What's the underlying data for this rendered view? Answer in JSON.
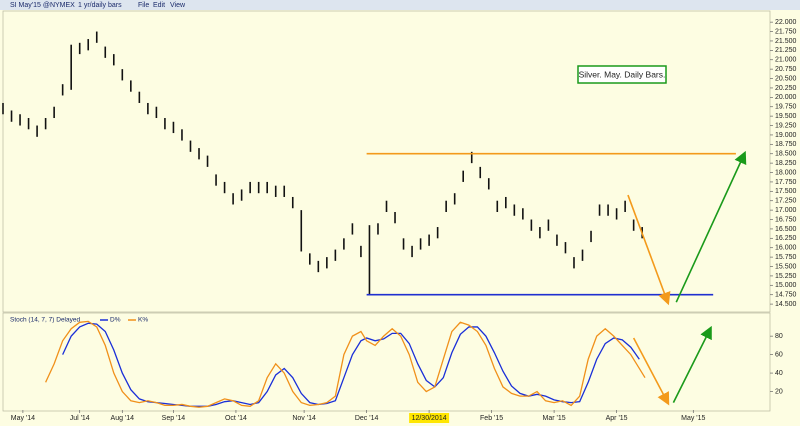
{
  "menu": [
    "File",
    "Edit",
    "View"
  ],
  "chart_data": [
    {
      "type": "pricebars",
      "title": "SI May'15 @NYMEX",
      "subtitle": "1 yr/daily bars",
      "annotation": "Silver. May. Daily Bars.",
      "color": "#111111",
      "xlim": [
        0,
        270
      ],
      "ylim": [
        14.29,
        22.27
      ],
      "x": [
        0,
        3,
        6,
        9,
        12,
        15,
        18,
        21,
        24,
        27,
        30,
        33,
        36,
        39,
        42,
        45,
        48,
        51,
        54,
        57,
        60,
        63,
        66,
        69,
        72,
        75,
        78,
        81,
        84,
        87,
        90,
        93,
        96,
        99,
        102,
        105,
        108,
        111,
        114,
        117,
        120,
        123,
        126,
        129,
        132,
        135,
        138,
        141,
        144,
        147,
        150,
        153,
        156,
        159,
        162,
        165,
        168,
        171,
        174,
        177,
        180,
        183,
        186,
        189,
        192,
        195,
        198,
        201,
        204,
        207,
        210,
        213,
        216,
        219,
        222,
        225
      ],
      "high": [
        19.85,
        19.65,
        19.55,
        19.45,
        19.25,
        19.45,
        19.75,
        20.35,
        21.4,
        21.45,
        21.55,
        21.75,
        21.35,
        21.15,
        20.75,
        20.45,
        20.15,
        19.85,
        19.75,
        19.45,
        19.35,
        19.15,
        18.85,
        18.65,
        18.45,
        17.95,
        17.75,
        17.45,
        17.55,
        17.75,
        17.75,
        17.75,
        17.65,
        17.65,
        17.35,
        17.0,
        15.85,
        15.65,
        15.75,
        15.95,
        16.25,
        16.65,
        16.05,
        16.6,
        16.65,
        17.25,
        16.95,
        16.25,
        16.05,
        16.25,
        16.35,
        16.55,
        17.25,
        17.45,
        18.05,
        18.55,
        18.15,
        17.85,
        17.25,
        17.35,
        17.15,
        17.05,
        16.75,
        16.55,
        16.75,
        16.35,
        16.15,
        15.75,
        15.95,
        16.45,
        17.15,
        17.15,
        17.05,
        17.25,
        16.75,
        16.55
      ],
      "low": [
        19.55,
        19.35,
        19.25,
        19.15,
        18.95,
        19.15,
        19.45,
        20.05,
        20.2,
        21.15,
        21.25,
        21.45,
        21.05,
        20.85,
        20.45,
        20.15,
        19.85,
        19.55,
        19.45,
        19.15,
        19.05,
        18.85,
        18.55,
        18.35,
        18.15,
        17.65,
        17.45,
        17.15,
        17.25,
        17.45,
        17.45,
        17.45,
        17.35,
        17.35,
        17.05,
        15.9,
        15.55,
        15.35,
        15.45,
        15.65,
        15.95,
        16.35,
        15.75,
        14.75,
        16.35,
        16.95,
        16.65,
        15.95,
        15.75,
        15.95,
        16.05,
        16.25,
        16.95,
        17.15,
        17.75,
        18.25,
        17.85,
        17.55,
        16.95,
        17.05,
        16.85,
        16.75,
        16.45,
        16.25,
        16.45,
        16.05,
        15.85,
        15.45,
        15.65,
        16.15,
        16.85,
        16.85,
        16.75,
        16.95,
        16.45,
        16.25
      ],
      "yticks": [
        {
          "value": 14.5,
          "label": "14.500"
        },
        {
          "value": 14.75,
          "label": "14.750"
        },
        {
          "value": 15,
          "label": "15.000"
        },
        {
          "value": 15.25,
          "label": "15.250"
        },
        {
          "value": 15.5,
          "label": "15.500"
        },
        {
          "value": 15.75,
          "label": "15.750"
        },
        {
          "value": 16,
          "label": "16.000"
        },
        {
          "value": 16.25,
          "label": "16.250"
        },
        {
          "value": 16.5,
          "label": "16.500"
        },
        {
          "value": 16.75,
          "label": "16.750"
        },
        {
          "value": 17,
          "label": "17.000"
        },
        {
          "value": 17.25,
          "label": "17.250"
        },
        {
          "value": 17.5,
          "label": "17.500"
        },
        {
          "value": 17.75,
          "label": "17.750"
        },
        {
          "value": 18,
          "label": "18.000"
        },
        {
          "value": 18.25,
          "label": "18.250"
        },
        {
          "value": 18.5,
          "label": "18.500"
        },
        {
          "value": 18.75,
          "label": "18.750"
        },
        {
          "value": 19,
          "label": "19.000"
        },
        {
          "value": 19.25,
          "label": "19.250"
        },
        {
          "value": 19.5,
          "label": "19.500"
        },
        {
          "value": 19.75,
          "label": "19.750"
        },
        {
          "value": 20,
          "label": "20.000"
        },
        {
          "value": 20.25,
          "label": "20.250"
        },
        {
          "value": 20.5,
          "label": "20.500"
        },
        {
          "value": 20.75,
          "label": "20.750"
        },
        {
          "value": 21,
          "label": "21.000"
        },
        {
          "value": 21.25,
          "label": "21.250"
        },
        {
          "value": 21.5,
          "label": "21.500"
        },
        {
          "value": 21.75,
          "label": "21.750"
        },
        {
          "value": 22,
          "label": "22.000"
        }
      ],
      "trendlines": [
        {
          "x": [
            128,
            258
          ],
          "y": [
            18.5,
            18.5
          ],
          "color": "#f39a1b"
        },
        {
          "x": [
            128,
            250
          ],
          "y": [
            14.75,
            14.75
          ],
          "color": "#1f2fd0"
        },
        {
          "x": [
            220,
            234
          ],
          "y": [
            17.4,
            14.55
          ],
          "color": "#f39a1b"
        },
        {
          "x": [
            237,
            261
          ],
          "y": [
            14.55,
            18.5
          ],
          "color": "#1a9a1a"
        }
      ]
    },
    {
      "type": "line",
      "title": "Stoch (14, 7, 7) Delayed",
      "xlim": [
        0,
        270
      ],
      "ylim": [
        0,
        104
      ],
      "yticks": [
        20,
        40,
        60,
        80
      ],
      "xticks": [
        {
          "value": 7,
          "label": "May '14"
        },
        {
          "value": 27,
          "label": "Jul '14"
        },
        {
          "value": 42,
          "label": "Aug '14"
        },
        {
          "value": 60,
          "label": "Sep '14"
        },
        {
          "value": 82,
          "label": "Oct '14"
        },
        {
          "value": 106,
          "label": "Nov '14"
        },
        {
          "value": 128,
          "label": "Dec '14"
        },
        {
          "value": 150,
          "label": "12/30/2014"
        },
        {
          "value": 172,
          "label": "Feb '15"
        },
        {
          "value": 194,
          "label": "Mar '15"
        },
        {
          "value": 216,
          "label": "Apr '15"
        },
        {
          "value": 243,
          "label": "May '15"
        }
      ],
      "highlight_xtick": 7,
      "series": [
        {
          "name": "D%",
          "color": "#1a2fd8",
          "x": [
            21,
            24,
            27,
            30,
            33,
            36,
            39,
            42,
            45,
            48,
            51,
            54,
            57,
            60,
            63,
            66,
            69,
            72,
            75,
            78,
            81,
            84,
            87,
            90,
            93,
            96,
            99,
            102,
            105,
            108,
            111,
            114,
            117,
            120,
            123,
            126,
            128,
            131,
            134,
            137,
            140,
            143,
            146,
            149,
            152,
            155,
            158,
            161,
            164,
            167,
            170,
            173,
            176,
            179,
            182,
            185,
            188,
            191,
            194,
            197,
            200,
            203,
            206,
            209,
            212,
            215,
            218,
            221,
            224
          ],
          "values": [
            60,
            80,
            90,
            94,
            93,
            85,
            65,
            40,
            22,
            12,
            9,
            8,
            7,
            6,
            5,
            4,
            4,
            4,
            6,
            9,
            10,
            8,
            6,
            8,
            20,
            38,
            45,
            35,
            18,
            8,
            6,
            7,
            10,
            35,
            60,
            75,
            78,
            75,
            77,
            83,
            83,
            72,
            50,
            32,
            25,
            35,
            62,
            82,
            90,
            90,
            80,
            62,
            42,
            26,
            18,
            15,
            17,
            15,
            11,
            9,
            8,
            9,
            30,
            55,
            72,
            78,
            76,
            68,
            55
          ]
        },
        {
          "name": "K%",
          "color": "#f0901a",
          "x": [
            15,
            18,
            21,
            24,
            27,
            30,
            33,
            36,
            39,
            42,
            45,
            48,
            51,
            54,
            57,
            60,
            63,
            66,
            69,
            72,
            75,
            78,
            81,
            84,
            87,
            90,
            93,
            96,
            99,
            102,
            105,
            108,
            111,
            114,
            117,
            120,
            123,
            126,
            128,
            131,
            134,
            137,
            140,
            143,
            146,
            149,
            152,
            155,
            158,
            161,
            164,
            167,
            170,
            173,
            176,
            179,
            182,
            185,
            188,
            191,
            194,
            197,
            200,
            203,
            206,
            209,
            212,
            215,
            218,
            221,
            224,
            226
          ],
          "values": [
            30,
            50,
            75,
            88,
            95,
            96,
            90,
            70,
            40,
            20,
            10,
            8,
            10,
            8,
            5,
            5,
            6,
            4,
            3,
            4,
            8,
            12,
            10,
            5,
            4,
            10,
            35,
            50,
            40,
            20,
            8,
            5,
            6,
            8,
            15,
            60,
            80,
            85,
            75,
            70,
            80,
            88,
            80,
            60,
            30,
            20,
            25,
            55,
            85,
            95,
            92,
            85,
            70,
            45,
            25,
            18,
            15,
            15,
            20,
            10,
            8,
            10,
            5,
            15,
            55,
            80,
            88,
            80,
            70,
            60,
            45,
            35
          ]
        }
      ],
      "trendlines": [
        {
          "x": [
            222,
            234
          ],
          "y": [
            78,
            8
          ],
          "color": "#f39a1b"
        },
        {
          "x": [
            236,
            249
          ],
          "y": [
            8,
            88
          ],
          "color": "#1a9a1a"
        }
      ]
    }
  ]
}
